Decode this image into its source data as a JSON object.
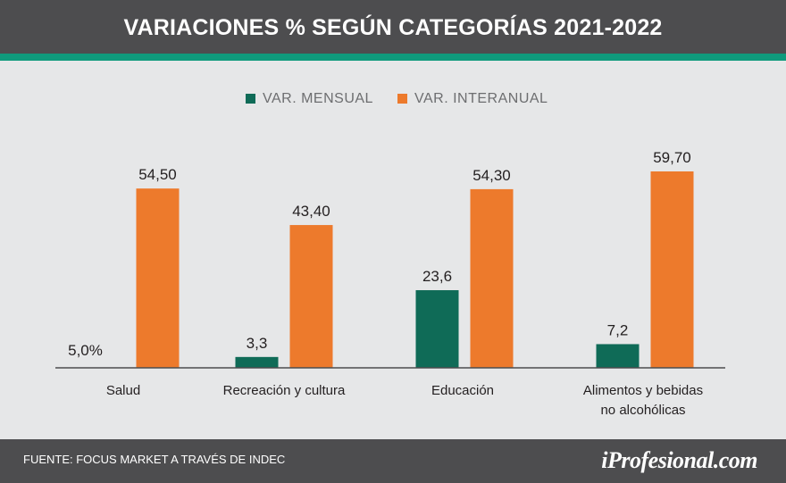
{
  "header": {
    "title": "VARIACIONES % SEGÚN CATEGORÍAS 2021-2022"
  },
  "footer": {
    "source": "FUENTE: FOCUS MARKET A TRAVÉS DE INDEC",
    "brand": "iProfesional.com"
  },
  "colors": {
    "mensual": "#0f6b57",
    "interanual": "#ed7a2c",
    "header": "#4d4d4f",
    "accent": "#0f9a7c",
    "background": "#e6e7e8"
  },
  "chart_data": {
    "type": "bar",
    "title": "VARIACIONES % SEGÚN CATEGORÍAS 2021-2022",
    "categories": [
      [
        "Salud"
      ],
      [
        "Recreación y cultura"
      ],
      [
        "Educación"
      ],
      [
        "Alimentos y bebidas",
        "no alcohólicas"
      ]
    ],
    "series": [
      {
        "name": "VAR. MENSUAL",
        "values": [
          5.0,
          3.3,
          23.6,
          7.2
        ],
        "labels": [
          "5,0%",
          "3,3",
          "23,6",
          "7,2"
        ],
        "color": "#0f6b57"
      },
      {
        "name": "VAR. INTERANUAL",
        "values": [
          54.5,
          43.4,
          54.3,
          59.7
        ],
        "labels": [
          "54,50",
          "43,40",
          "54,30",
          "59,70"
        ],
        "color": "#ed7a2c"
      }
    ],
    "mensual_scale_note": "Salud monthly bar not drawn",
    "ylim": [
      0,
      65
    ],
    "legend": "top-center",
    "xlabel": "",
    "ylabel": ""
  }
}
